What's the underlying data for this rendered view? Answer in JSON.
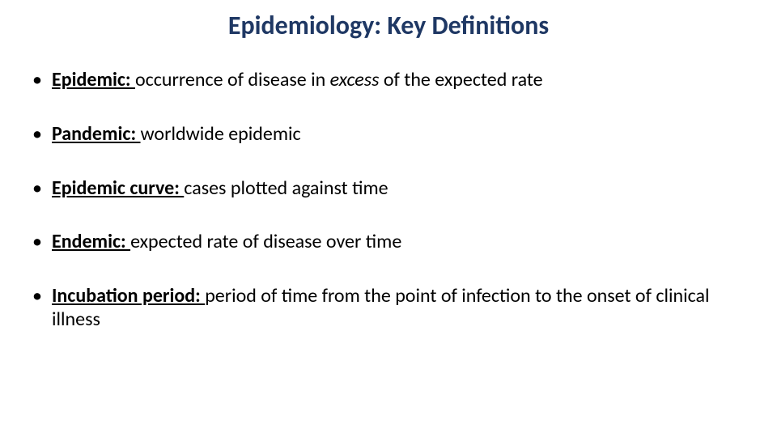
{
  "colors": {
    "title": "#1f3864",
    "body_text": "#000000",
    "background": "#ffffff"
  },
  "typography": {
    "title_fontsize": 32,
    "title_weight": 700,
    "body_fontsize": 24,
    "body_weight": 400,
    "term_weight": 700
  },
  "title": "Epidemiology: Key Definitions",
  "bullets": [
    {
      "term": "Epidemic: ",
      "def_pre": "occurrence of disease in ",
      "def_em": "excess",
      "def_post": " of the expected rate"
    },
    {
      "term": "Pandemic: ",
      "def_pre": "worldwide epidemic",
      "def_em": "",
      "def_post": ""
    },
    {
      "term": "Epidemic curve: ",
      "def_pre": "cases plotted against time",
      "def_em": "",
      "def_post": ""
    },
    {
      "term": "Endemic: ",
      "def_pre": "expected rate of disease over time",
      "def_em": "",
      "def_post": ""
    },
    {
      "term": "Incubation period: ",
      "def_pre": "period of time from the point of infection to the onset of clinical illness",
      "def_em": "",
      "def_post": ""
    }
  ],
  "bullet_glyph": "•"
}
